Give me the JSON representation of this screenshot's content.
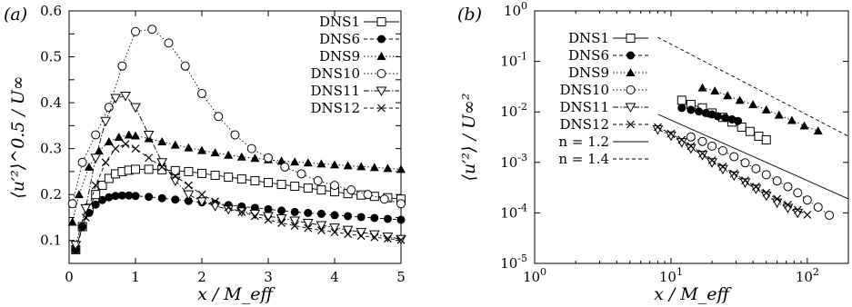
{
  "chart_data": [
    {
      "panel": "(a)",
      "type": "line",
      "ylabel": "⟨u′²⟩^0.5 / U∞",
      "xlabel": "x / M_eff",
      "xlim": [
        0,
        5
      ],
      "ylim": [
        0.05,
        0.6
      ],
      "x_ticks": [
        "0",
        "1",
        "2",
        "3",
        "4",
        "5"
      ],
      "y_ticks": [
        "0.1",
        "0.15",
        "0.2",
        "0.25",
        "0.3",
        "0.35",
        "0.4",
        "0.45",
        "0.5",
        "0.55",
        "0.6"
      ],
      "y_tick_labels": [
        "0.1",
        "",
        "0.2",
        "",
        "0.3",
        "",
        "0.4",
        "",
        "0.5",
        "",
        "0.6"
      ],
      "grid": false,
      "legend_position": "top-right",
      "series": [
        {
          "name": "DNS1",
          "marker": "open-square",
          "line": "solid",
          "x": [
            0.1,
            0.2,
            0.3,
            0.4,
            0.5,
            0.6,
            0.7,
            0.8,
            0.9,
            1.0,
            1.2,
            1.4,
            1.6,
            1.8,
            2.0,
            2.2,
            2.4,
            2.6,
            2.8,
            3.0,
            3.2,
            3.4,
            3.6,
            3.8,
            4.0,
            4.2,
            4.4,
            4.6,
            4.8,
            5.0
          ],
          "values": [
            0.08,
            0.13,
            0.17,
            0.2,
            0.22,
            0.235,
            0.245,
            0.25,
            0.253,
            0.255,
            0.255,
            0.254,
            0.252,
            0.25,
            0.246,
            0.242,
            0.238,
            0.234,
            0.23,
            0.226,
            0.222,
            0.218,
            0.214,
            0.21,
            0.206,
            0.202,
            0.199,
            0.196,
            0.193,
            0.19
          ]
        },
        {
          "name": "DNS6",
          "marker": "filled-circle",
          "line": "dashed",
          "x": [
            0.1,
            0.2,
            0.3,
            0.4,
            0.5,
            0.6,
            0.7,
            0.8,
            0.9,
            1.0,
            1.2,
            1.4,
            1.6,
            1.8,
            2.0,
            2.2,
            2.4,
            2.6,
            2.8,
            3.0,
            3.2,
            3.4,
            3.6,
            3.8,
            4.0,
            4.2,
            4.4,
            4.6,
            4.8,
            5.0
          ],
          "values": [
            0.08,
            0.13,
            0.16,
            0.178,
            0.188,
            0.194,
            0.197,
            0.198,
            0.198,
            0.197,
            0.195,
            0.192,
            0.189,
            0.186,
            0.183,
            0.18,
            0.177,
            0.174,
            0.171,
            0.168,
            0.165,
            0.162,
            0.16,
            0.158,
            0.155,
            0.153,
            0.151,
            0.149,
            0.147,
            0.145
          ]
        },
        {
          "name": "DNS9",
          "marker": "filled-triangle",
          "line": "dotted",
          "x": [
            0.05,
            0.15,
            0.3,
            0.45,
            0.6,
            0.75,
            0.9,
            1.0,
            1.2,
            1.4,
            1.6,
            1.8,
            2.0,
            2.2,
            2.4,
            2.6,
            2.8,
            3.0,
            3.2,
            3.4,
            3.6,
            3.8,
            4.0,
            4.2,
            4.4,
            4.6,
            4.8,
            5.0
          ],
          "values": [
            0.14,
            0.2,
            0.26,
            0.295,
            0.315,
            0.325,
            0.33,
            0.328,
            0.322,
            0.315,
            0.308,
            0.302,
            0.296,
            0.291,
            0.286,
            0.282,
            0.279,
            0.276,
            0.273,
            0.271,
            0.269,
            0.267,
            0.265,
            0.263,
            0.261,
            0.259,
            0.257,
            0.255
          ]
        },
        {
          "name": "DNS10",
          "marker": "open-circle",
          "line": "dotted",
          "x": [
            0.05,
            0.2,
            0.4,
            0.6,
            0.8,
            1.0,
            1.25,
            1.5,
            1.75,
            2.0,
            2.25,
            2.5,
            2.75,
            3.0,
            3.25,
            3.5,
            3.75,
            4.0,
            4.25,
            4.5,
            4.75,
            5.0
          ],
          "values": [
            0.18,
            0.27,
            0.33,
            0.39,
            0.48,
            0.555,
            0.56,
            0.53,
            0.48,
            0.42,
            0.37,
            0.33,
            0.3,
            0.28,
            0.26,
            0.245,
            0.23,
            0.22,
            0.21,
            0.2,
            0.19,
            0.18
          ]
        },
        {
          "name": "DNS11",
          "marker": "open-inverted-triangle",
          "line": "dash-dot",
          "x": [
            0.1,
            0.25,
            0.4,
            0.55,
            0.7,
            0.85,
            1.0,
            1.2,
            1.4,
            1.6,
            1.8,
            2.0,
            2.2,
            2.4,
            2.6,
            2.8,
            3.0,
            3.2,
            3.4,
            3.6,
            3.8,
            4.0,
            4.2,
            4.4,
            4.6,
            4.8,
            5.0
          ],
          "values": [
            0.09,
            0.17,
            0.28,
            0.36,
            0.41,
            0.415,
            0.39,
            0.33,
            0.27,
            0.23,
            0.2,
            0.185,
            0.175,
            0.168,
            0.163,
            0.158,
            0.153,
            0.148,
            0.143,
            0.138,
            0.133,
            0.128,
            0.123,
            0.118,
            0.113,
            0.108,
            0.103
          ]
        },
        {
          "name": "DNS12",
          "marker": "cross",
          "line": "dashed",
          "x": [
            0.1,
            0.25,
            0.4,
            0.55,
            0.7,
            0.85,
            1.0,
            1.2,
            1.4,
            1.6,
            1.8,
            2.0,
            2.2,
            2.4,
            2.6,
            2.8,
            3.0,
            3.2,
            3.4,
            3.6,
            3.8,
            4.0,
            4.2,
            4.4,
            4.6,
            4.8,
            5.0
          ],
          "values": [
            0.08,
            0.15,
            0.22,
            0.27,
            0.3,
            0.31,
            0.3,
            0.28,
            0.26,
            0.24,
            0.22,
            0.2,
            0.185,
            0.172,
            0.162,
            0.153,
            0.145,
            0.138,
            0.132,
            0.127,
            0.122,
            0.118,
            0.114,
            0.11,
            0.107,
            0.104,
            0.101
          ]
        }
      ]
    },
    {
      "panel": "(b)",
      "type": "line",
      "ylabel": "⟨u′²⟩ / U∞²",
      "xlabel": "x / M_eff",
      "x_scale": "log",
      "y_scale": "log",
      "xlim": [
        1,
        200
      ],
      "ylim": [
        1e-05,
        1
      ],
      "x_ticks": [
        1,
        10,
        100
      ],
      "y_ticks": [
        1e-05,
        0.0001,
        0.001,
        0.01,
        0.1,
        1
      ],
      "grid": false,
      "legend_position": "top-left",
      "series": [
        {
          "name": "DNS1",
          "marker": "open-square",
          "line": "solid",
          "x": [
            12,
            14,
            17,
            20,
            24,
            28,
            33,
            38,
            44,
            50
          ],
          "values": [
            0.017,
            0.014,
            0.012,
            0.0095,
            0.0078,
            0.0063,
            0.005,
            0.0041,
            0.0033,
            0.0028
          ]
        },
        {
          "name": "DNS6",
          "marker": "filled-circle",
          "line": "dashed",
          "x": [
            12,
            14,
            16,
            18,
            20,
            22,
            25,
            28,
            31
          ],
          "values": [
            0.012,
            0.011,
            0.0102,
            0.0095,
            0.0089,
            0.0082,
            0.0076,
            0.0071,
            0.0066
          ]
        },
        {
          "name": "DNS9",
          "marker": "filled-triangle",
          "line": "dotted",
          "x": [
            17,
            21,
            26,
            32,
            40,
            50,
            62,
            77,
            95,
            120
          ],
          "values": [
            0.03,
            0.026,
            0.021,
            0.017,
            0.014,
            0.011,
            0.0087,
            0.0068,
            0.0053,
            0.0042
          ]
        },
        {
          "name": "DNS10",
          "marker": "open-circle",
          "line": "dotted",
          "x": [
            14,
            17,
            20,
            24,
            29,
            35,
            42,
            50,
            60,
            72,
            85,
            100,
            120,
            145
          ],
          "values": [
            0.0032,
            0.0026,
            0.0021,
            0.0017,
            0.0013,
            0.00098,
            0.00075,
            0.00057,
            0.00043,
            0.00033,
            0.00025,
            0.00018,
            0.00013,
            9e-05
          ]
        },
        {
          "name": "DNS11",
          "marker": "open-inverted-triangle",
          "line": "dash-dot",
          "x": [
            8,
            10,
            12,
            14,
            17,
            20,
            24,
            29,
            35,
            42,
            50,
            60,
            72,
            85
          ],
          "values": [
            0.0045,
            0.0034,
            0.0025,
            0.0019,
            0.0014,
            0.001,
            0.00074,
            0.00055,
            0.0004,
            0.0003,
            0.00022,
            0.00016,
            0.000125,
            0.0001
          ]
        },
        {
          "name": "DNS12",
          "marker": "cross",
          "line": "dashed",
          "x": [
            8,
            10,
            12,
            14,
            17,
            20,
            24,
            29,
            35,
            42,
            50,
            60,
            72,
            85,
            100
          ],
          "values": [
            0.005,
            0.0037,
            0.0028,
            0.0021,
            0.0015,
            0.0011,
            0.00082,
            0.0006,
            0.00044,
            0.00033,
            0.00025,
            0.00019,
            0.000145,
            0.000115,
            9.2e-05
          ]
        },
        {
          "name": "n = 1.2",
          "marker": "none",
          "line": "solid",
          "x": [
            8,
            200
          ],
          "values": [
            0.009,
            0.00019
          ]
        },
        {
          "name": "n = 1.4",
          "marker": "none",
          "line": "dashed",
          "x": [
            8,
            200
          ],
          "values": [
            0.3,
            0.0033
          ]
        }
      ]
    }
  ]
}
